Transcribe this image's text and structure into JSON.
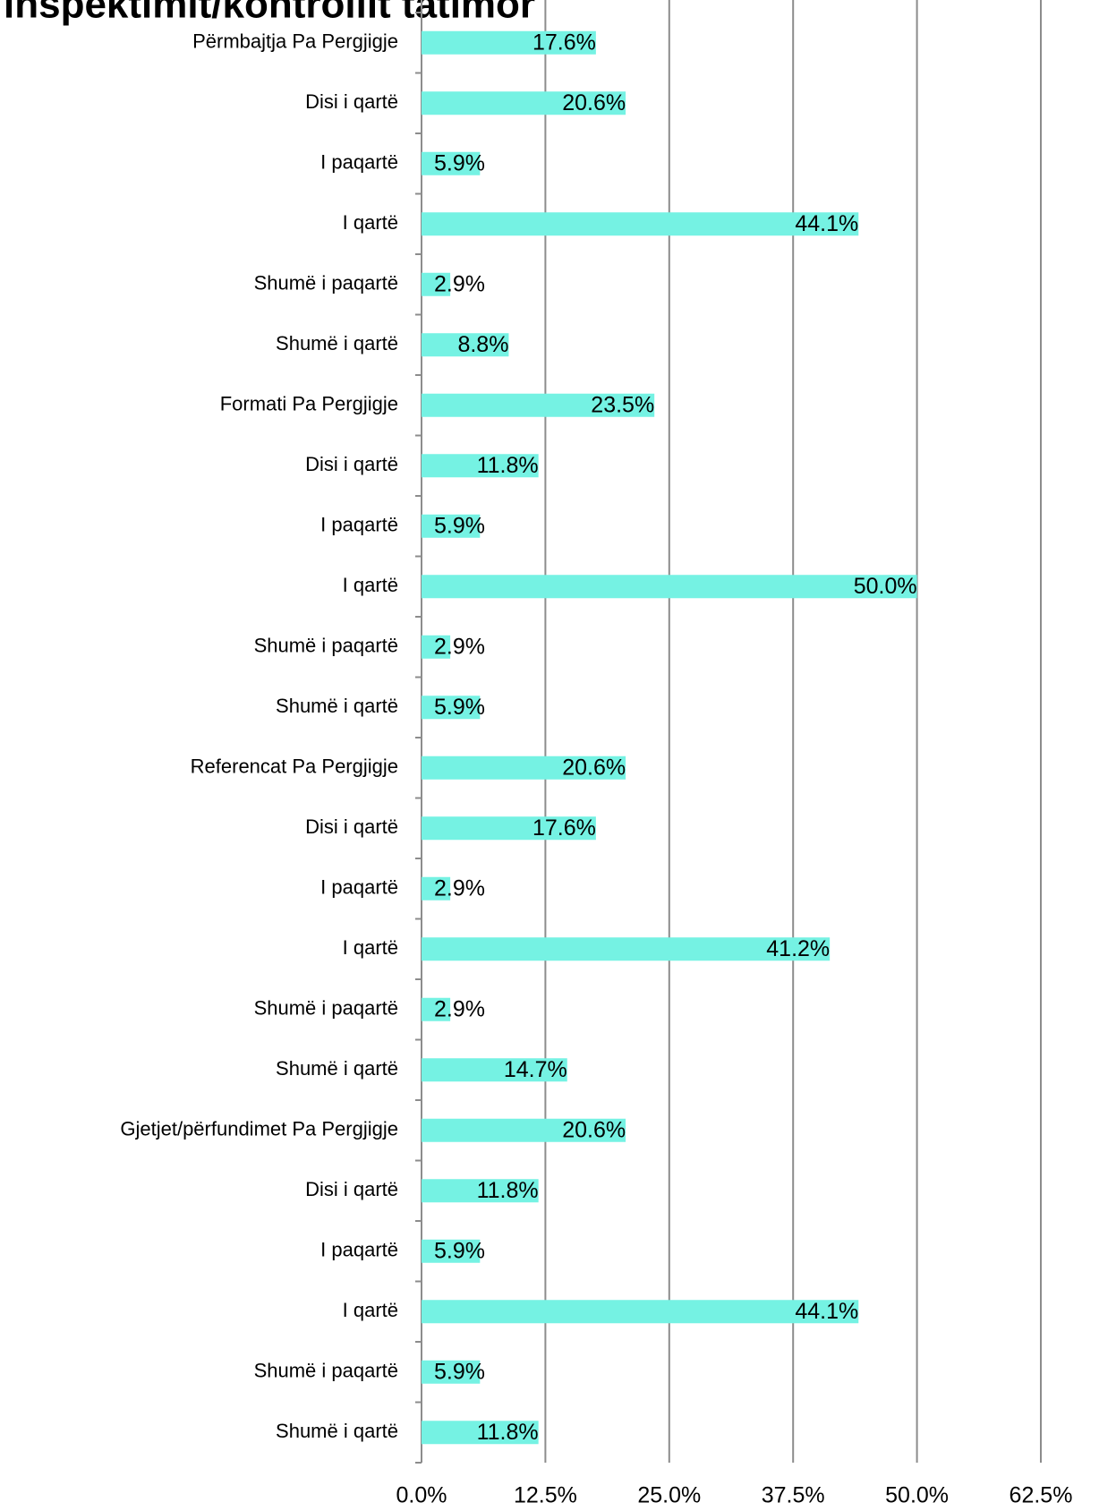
{
  "chart_data": {
    "type": "bar",
    "orientation": "horizontal",
    "title": "inspektimit/kontrollit tatimor",
    "categories": [
      "Përmbajtja Pa Pergjigje",
      "Disi i qartë",
      "I paqartë",
      "I qartë",
      "Shumë i paqartë",
      "Shumë i qartë",
      "Formati Pa Pergjigje",
      "Disi i qartë",
      "I paqartë",
      "I qartë",
      "Shumë i paqartë",
      "Shumë i qartë",
      "Referencat Pa Pergjigje",
      "Disi i qartë",
      "I paqartë",
      "I qartë",
      "Shumë i paqartë",
      "Shumë i qartë",
      "Gjetjet/përfundimet Pa Pergjigje",
      "Disi i qartë",
      "I paqartë",
      "I qartë",
      "Shumë i paqartë",
      "Shumë i qartë"
    ],
    "values": [
      17.6,
      20.6,
      5.9,
      44.1,
      2.9,
      8.8,
      23.5,
      11.8,
      5.9,
      50.0,
      2.9,
      5.9,
      20.6,
      17.6,
      2.9,
      41.2,
      2.9,
      14.7,
      20.6,
      11.8,
      5.9,
      44.1,
      5.9,
      11.8
    ],
    "value_labels": [
      "17.6%",
      "20.6%",
      "5.9%",
      "44.1%",
      "2.9%",
      "8.8%",
      "23.5%",
      "11.8%",
      "5.9%",
      "50.0%",
      "2.9%",
      "5.9%",
      "20.6%",
      "17.6%",
      "2.9%",
      "41.2%",
      "2.9%",
      "14.7%",
      "20.6%",
      "11.8%",
      "5.9%",
      "44.1%",
      "5.9%",
      "11.8%"
    ],
    "color": "#75f2e3",
    "xlim": [
      0,
      62.5
    ],
    "xticks": [
      {
        "value": 0,
        "label": "0.0%"
      },
      {
        "value": 12.5,
        "label": "12.5%"
      },
      {
        "value": 25,
        "label": "25.0%"
      },
      {
        "value": 37.5,
        "label": "37.5%"
      },
      {
        "value": 50,
        "label": "50.0%"
      },
      {
        "value": 62.5,
        "label": "62.5%"
      }
    ],
    "grid": true
  }
}
